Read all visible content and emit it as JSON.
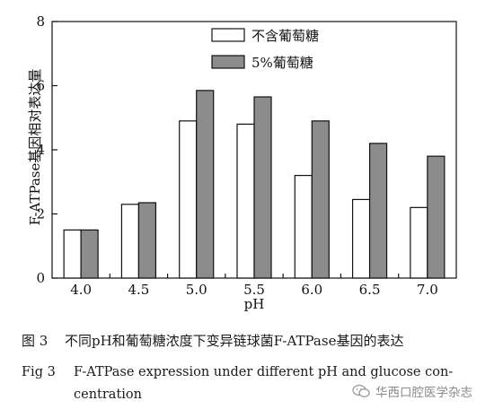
{
  "chart_data": {
    "type": "bar",
    "categories": [
      "4.0",
      "4.5",
      "5.0",
      "5.5",
      "6.0",
      "6.5",
      "7.0"
    ],
    "series": [
      {
        "name": "不含葡萄糖",
        "values": [
          1.5,
          2.3,
          4.9,
          4.8,
          3.2,
          2.45,
          2.2
        ],
        "color": "#ffffff"
      },
      {
        "name": "5%葡萄糖",
        "values": [
          1.5,
          2.35,
          5.85,
          5.65,
          4.9,
          4.2,
          3.8
        ],
        "color": "#8c8c8c"
      }
    ],
    "xlabel": "pH",
    "ylabel": "F-ATPase基因相对表达量",
    "ylim": [
      0,
      8
    ],
    "yticks": [
      0,
      2,
      4,
      6,
      8
    ],
    "grid": false,
    "legend_position": "top-center"
  },
  "caption": {
    "cn_label": "图 3",
    "cn_text": "不同pH和葡萄糖浓度下变异链球菌F-ATPase基因的表达",
    "en_label": "Fig 3",
    "en_text_line1": "F-ATPase expression under different pH and glucose con-",
    "en_text_line2": "centration"
  },
  "watermark": {
    "text": "华西口腔医学杂志",
    "icon": "wechat-icon"
  }
}
